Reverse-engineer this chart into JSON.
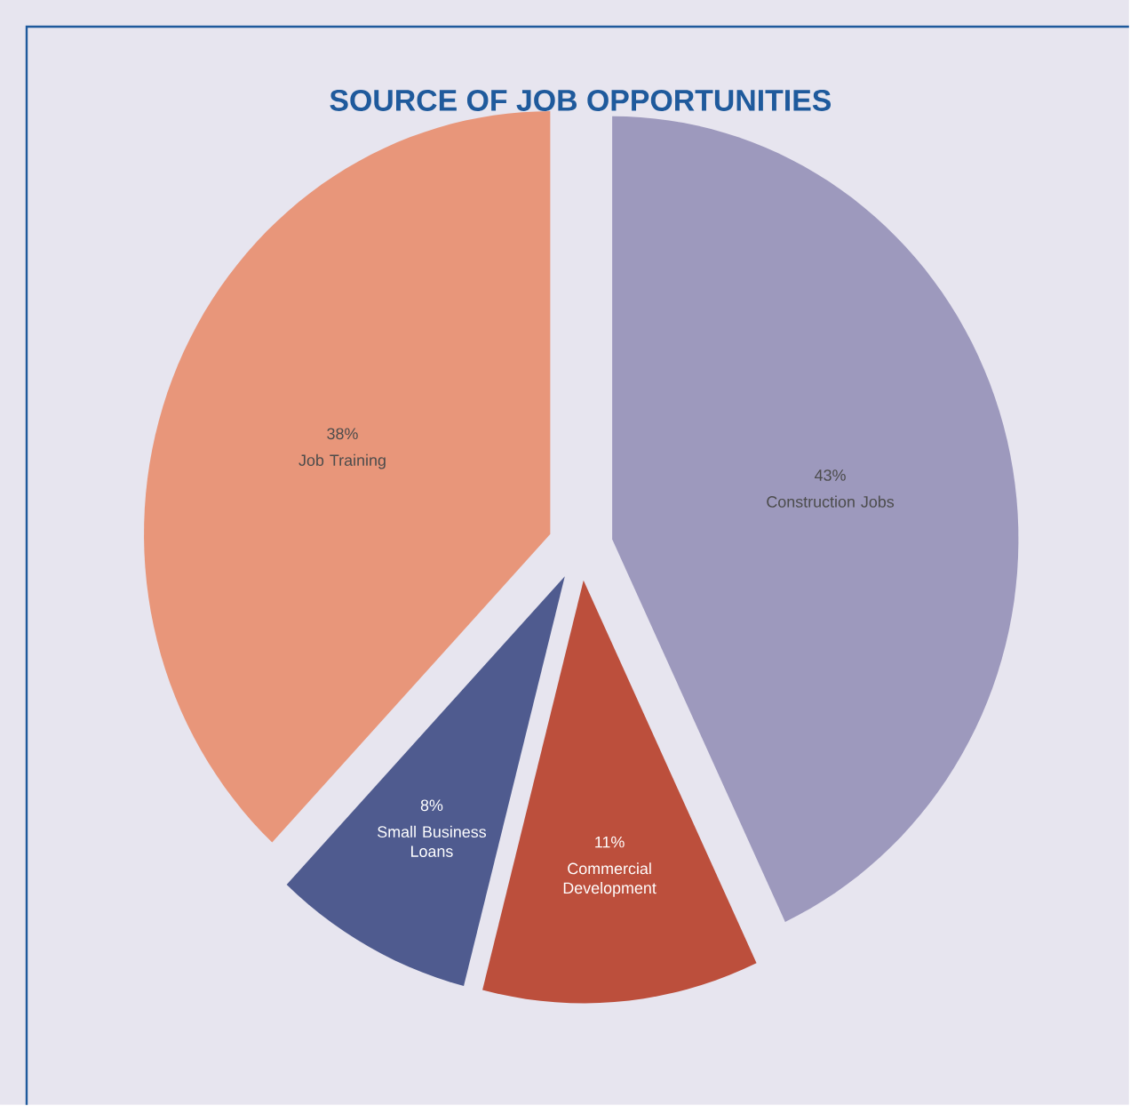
{
  "chart_data": {
    "type": "pie",
    "title": "SOURCE OF JOB OPPORTUNITIES",
    "categories": [
      "Construction Jobs",
      "Commercial Development",
      "Small Business Loans",
      "Job Training"
    ],
    "values": [
      43,
      11,
      8,
      38
    ],
    "value_labels": [
      "43%",
      "11%",
      "8%",
      "38%"
    ],
    "colors": [
      "#9d99bd",
      "#bc4f3c",
      "#4f5b8f",
      "#e8967a"
    ]
  }
}
